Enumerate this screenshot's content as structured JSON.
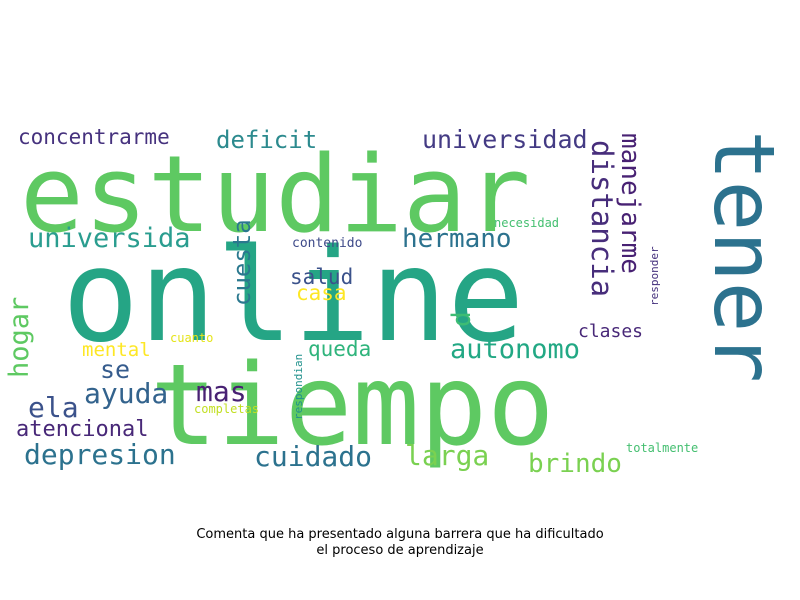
{
  "chart_data": {
    "type": "wordcloud",
    "title": "Comenta que ha presentado alguna barrera que ha dificultado el proceso de aprendizaje",
    "title_line1": "Comenta que ha presentado alguna barrera que ha dificultado",
    "title_line2": "el proceso de aprendizaje",
    "colormap": "viridis",
    "words": [
      {
        "text": "online",
        "color": "#25a585"
      },
      {
        "text": "tiempo",
        "color": "#5ec962"
      },
      {
        "text": "estudiar",
        "color": "#5ec962"
      },
      {
        "text": "tener",
        "color": "#2c728e"
      },
      {
        "text": "distancia",
        "color": "#472d7b"
      },
      {
        "text": "universidad",
        "color": "#443b84"
      },
      {
        "text": "manejarme",
        "color": "#482173"
      },
      {
        "text": "hermano",
        "color": "#2c728e"
      },
      {
        "text": "universida",
        "color": "#2a9d8f"
      },
      {
        "text": "deficit",
        "color": "#2c8a8e"
      },
      {
        "text": "concentrarme",
        "color": "#46327e"
      },
      {
        "text": "autonomo",
        "color": "#22a884"
      },
      {
        "text": "depresion",
        "color": "#2c728e"
      },
      {
        "text": "cuidado",
        "color": "#2c728e"
      },
      {
        "text": "larga",
        "color": "#7ad151"
      },
      {
        "text": "brindo",
        "color": "#7ad151"
      },
      {
        "text": "ayuda",
        "color": "#33638d"
      },
      {
        "text": "mas",
        "color": "#482173"
      },
      {
        "text": "ela",
        "color": "#3b528b"
      },
      {
        "text": "se",
        "color": "#365c8d"
      },
      {
        "text": "atencional",
        "color": "#482878"
      },
      {
        "text": "hogar",
        "color": "#5ec962"
      },
      {
        "text": "cuesta",
        "color": "#2a788e"
      },
      {
        "text": "d",
        "color": "#3dbc74"
      },
      {
        "text": "queda",
        "color": "#2fb47c"
      },
      {
        "text": "salud",
        "color": "#3b528b"
      },
      {
        "text": "casa",
        "color": "#fde725"
      },
      {
        "text": "clases",
        "color": "#482878"
      },
      {
        "text": "mental",
        "color": "#fde725"
      },
      {
        "text": "contenido",
        "color": "#3e4a89"
      },
      {
        "text": "necesidad",
        "color": "#44bf70"
      },
      {
        "text": "responder",
        "color": "#46327e"
      },
      {
        "text": "respondian",
        "color": "#21918c"
      },
      {
        "text": "cuanto",
        "color": "#e5e419"
      },
      {
        "text": "completas",
        "color": "#c2df23"
      },
      {
        "text": "totalmente",
        "color": "#44bf70"
      }
    ]
  }
}
